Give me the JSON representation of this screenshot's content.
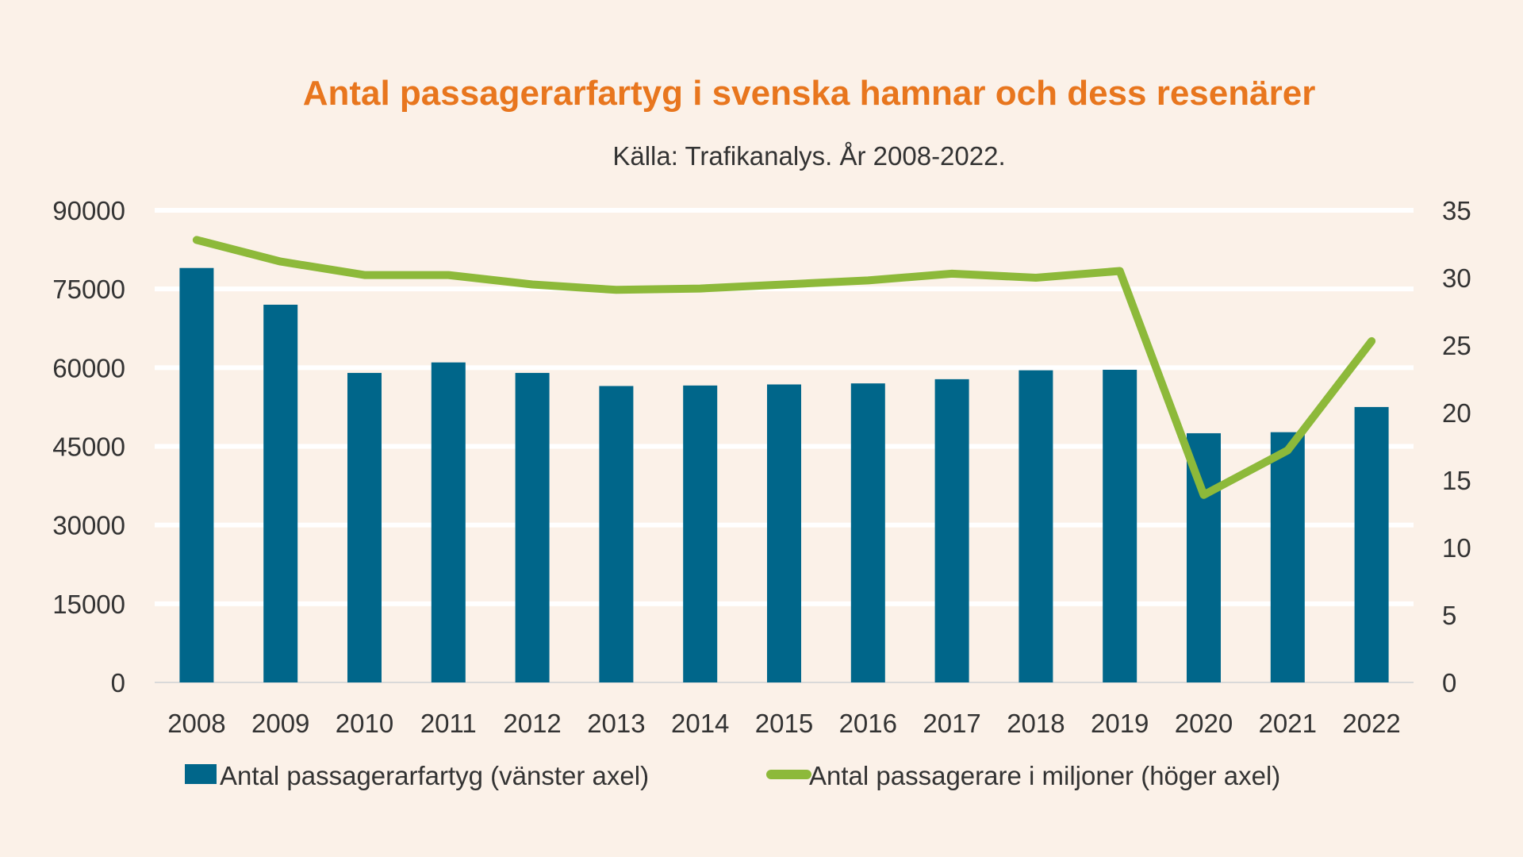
{
  "colors": {
    "background": "#FBF1E8",
    "title": "#E8761E",
    "bars": "#00668A",
    "line": "#8DB93A",
    "grid": "#FFFFFF",
    "text": "#333333"
  },
  "chart_data": {
    "type": "bar",
    "title": "Antal passagerarfartyg i svenska hamnar och dess resenärer",
    "subtitle": "Källa: Trafikanalys. År 2008-2022.",
    "categories": [
      "2008",
      "2009",
      "2010",
      "2011",
      "2012",
      "2013",
      "2014",
      "2015",
      "2016",
      "2017",
      "2018",
      "2019",
      "2020",
      "2021",
      "2022"
    ],
    "y_left": {
      "min": 0,
      "max": 90000,
      "ticks": [
        "0",
        "15000",
        "30000",
        "45000",
        "60000",
        "75000",
        "90000"
      ]
    },
    "y_right": {
      "min": 0,
      "max": 35,
      "ticks": [
        "0",
        "5",
        "10",
        "15",
        "20",
        "25",
        "30",
        "35"
      ]
    },
    "grid": true,
    "legend_position": "bottom",
    "series": [
      {
        "name": "Antal passagerarfartyg (vänster axel)",
        "type": "bar",
        "axis": "left",
        "values": [
          79000,
          72000,
          59000,
          61000,
          59000,
          56500,
          56600,
          56800,
          57000,
          57800,
          59500,
          59600,
          47500,
          47700,
          52500
        ]
      },
      {
        "name": "Antal passagerare i miljoner (höger axel)",
        "type": "line",
        "axis": "right",
        "values": [
          32.8,
          31.2,
          30.2,
          30.2,
          29.5,
          29.1,
          29.2,
          29.5,
          29.8,
          30.3,
          30.0,
          30.5,
          13.9,
          17.2,
          25.3
        ]
      }
    ]
  }
}
